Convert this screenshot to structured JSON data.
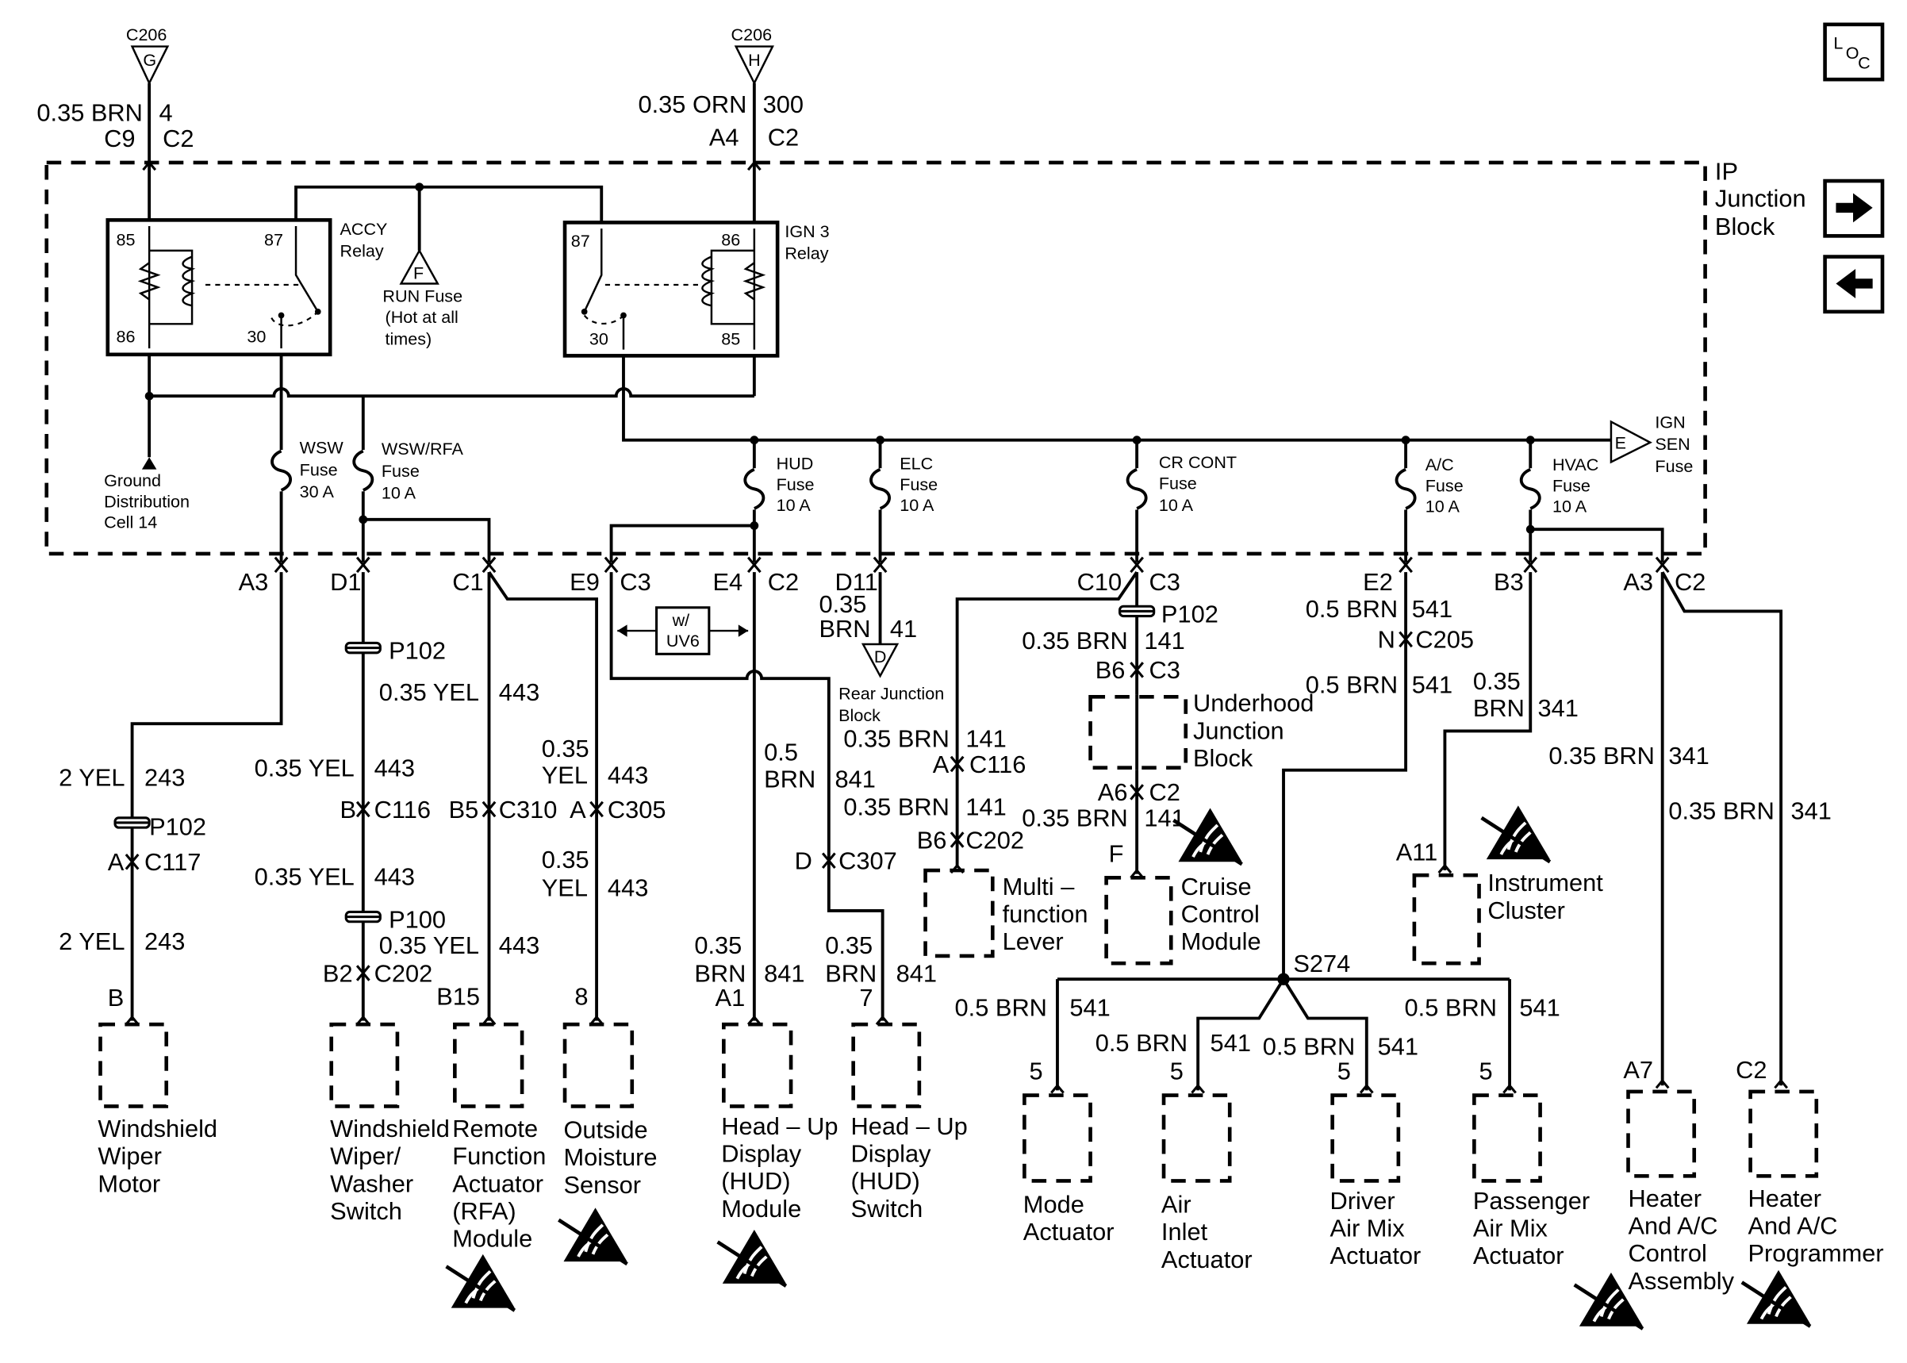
{
  "header_connectors": {
    "left": {
      "name": "C206",
      "pin": "G",
      "wire": "0.35 BRN",
      "circuit": "4",
      "upper_conn": "C9",
      "lower_conn": "C2"
    },
    "right": {
      "name": "C206",
      "pin": "H",
      "wire": "0.35 ORN",
      "circuit": "300",
      "upper_conn": "A4",
      "lower_conn": "C2"
    }
  },
  "nav_icons": {
    "loc": [
      "L",
      "O",
      "C"
    ],
    "next": "arrow-right-icon",
    "prev": "arrow-left-icon"
  },
  "junction_block": {
    "title": [
      "IP",
      "Junction",
      "Block"
    ],
    "accy_relay": {
      "name": "ACCY",
      "sub": "Relay",
      "pins": [
        "85",
        "87",
        "86",
        "30"
      ]
    },
    "ign3_relay": {
      "name": "IGN 3",
      "sub": "Relay",
      "pins": [
        "87",
        "86",
        "30",
        "85"
      ]
    },
    "run_fuse": {
      "pin": "F",
      "lines": [
        "RUN Fuse",
        "(Hot at all",
        "times)"
      ]
    },
    "ground": [
      "Ground",
      "Distribution",
      "Cell 14"
    ],
    "ign_sen": {
      "pin": "E",
      "lines": [
        "IGN",
        "SEN",
        "Fuse"
      ]
    },
    "fuses": [
      {
        "lines": [
          "WSW",
          "Fuse",
          "30 A"
        ]
      },
      {
        "lines": [
          "WSW/RFA",
          "Fuse",
          "10 A"
        ]
      },
      {
        "lines": [
          "HUD",
          "Fuse",
          "10 A"
        ]
      },
      {
        "lines": [
          "ELC",
          "Fuse",
          "10 A"
        ]
      },
      {
        "lines": [
          "CR CONT",
          "Fuse",
          "10 A"
        ]
      },
      {
        "lines": [
          "A/C",
          "Fuse",
          "10 A"
        ]
      },
      {
        "lines": [
          "HVAC",
          "Fuse",
          "10 A"
        ]
      }
    ]
  },
  "block_pins": [
    "A3",
    "D1",
    "C1",
    "E9",
    "C3",
    "E4",
    "C2",
    "D11",
    "C10",
    "C3",
    "E2",
    "B3",
    "A3",
    "C2"
  ],
  "option_box": [
    "w/",
    "UV6"
  ],
  "rear_junction": {
    "pin": "D",
    "lines": [
      "Rear Junction",
      "Block"
    ]
  },
  "wire_labels": [
    "2 YEL",
    "243",
    "2 YEL",
    "243",
    "0.35 YEL",
    "443",
    "0.35 YEL",
    "443",
    "0.35 YEL",
    "443",
    "0.35 YEL",
    "443",
    "0.35",
    "YEL",
    "443",
    "0.35",
    "YEL",
    "443",
    "0.5",
    "BRN",
    "841",
    "0.35",
    "BRN",
    "841",
    "0.35",
    "BRN",
    "841",
    "0.35",
    "BRN",
    "41",
    "0.35 BRN",
    "141",
    "0.35 BRN",
    "141",
    "0.35 BRN",
    "141",
    "0.35 BRN",
    "141",
    "0.5 BRN",
    "541",
    "0.5 BRN",
    "541",
    "0.35",
    "BRN",
    "341",
    "0.35 BRN",
    "341",
    "0.35 BRN",
    "341",
    "0.5 BRN",
    "541",
    "0.5 BRN",
    "541",
    "0.5 BRN",
    "541",
    "0.5 BRN",
    "541"
  ],
  "connector_labels": [
    "P102",
    "B",
    "C116",
    "P100",
    "B2",
    "C202",
    "P102",
    "A",
    "C117",
    "B",
    "B5",
    "C310",
    "B15",
    "A",
    "C305",
    "8",
    "A1",
    "D",
    "C307",
    "7",
    "A",
    "C116",
    "B6",
    "C202",
    "P102",
    "B6",
    "C3",
    "A6",
    "C2",
    "F",
    "N",
    "C205",
    "A11",
    "A7",
    "C2",
    "5",
    "5",
    "5",
    "5",
    "S274"
  ],
  "components": [
    {
      "lines": [
        "Windshield",
        "Wiper",
        "Motor"
      ]
    },
    {
      "lines": [
        "Windshield",
        "Wiper/",
        "Washer",
        "Switch"
      ]
    },
    {
      "lines": [
        "Remote",
        "Function",
        "Actuator",
        "(RFA)",
        "Module"
      ]
    },
    {
      "lines": [
        "Outside",
        "Moisture",
        "Sensor"
      ]
    },
    {
      "lines": [
        "Head – Up",
        "Display",
        "(HUD)",
        "Module"
      ]
    },
    {
      "lines": [
        "Head – Up",
        "Display",
        "(HUD)",
        "Switch"
      ]
    },
    {
      "lines": [
        "Multi –",
        "function",
        "Lever"
      ]
    },
    {
      "lines": [
        "Underhood",
        "Junction",
        "Block"
      ]
    },
    {
      "lines": [
        "Cruise",
        "Control",
        "Module"
      ]
    },
    {
      "lines": [
        "Instrument",
        "Cluster"
      ]
    },
    {
      "lines": [
        "Mode",
        "Actuator"
      ]
    },
    {
      "lines": [
        "Air",
        "Inlet",
        "Actuator"
      ]
    },
    {
      "lines": [
        "Driver",
        "Air Mix",
        "Actuator"
      ]
    },
    {
      "lines": [
        "Passenger",
        "Air Mix",
        "Actuator"
      ]
    },
    {
      "lines": [
        "Heater",
        "And A/C",
        "Control",
        "Assembly"
      ]
    },
    {
      "lines": [
        "Heater",
        "And A/C",
        "Programmer"
      ]
    }
  ],
  "esd_icon": "esd-sensitive-icon"
}
